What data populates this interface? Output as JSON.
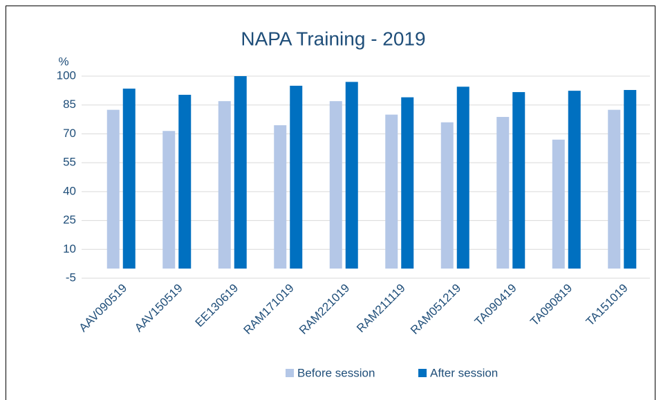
{
  "chart_data": {
    "type": "bar",
    "title": "NAPA Training - 2019",
    "y_label": "%",
    "categories": [
      "AAV090519",
      "AAV150519",
      "EE130619",
      "RAM171019",
      "RAM221019",
      "RAM211119",
      "RAM051219",
      "TA090419",
      "TA090819",
      "TA151019"
    ],
    "series": [
      {
        "name": "Before session",
        "color": "#b4c7e7",
        "values": [
          82.5,
          71.5,
          87,
          74.5,
          87,
          80,
          76,
          78.8,
          67,
          82.5
        ]
      },
      {
        "name": "After session",
        "color": "#0070c0",
        "values": [
          93.5,
          90.3,
          100,
          95,
          97,
          89,
          94.5,
          91.7,
          92.4,
          92.8
        ]
      }
    ],
    "ylim": [
      -5,
      100
    ],
    "yticks": [
      -5,
      10,
      25,
      40,
      55,
      70,
      85,
      100
    ],
    "grid": true,
    "legend": "bottom"
  }
}
